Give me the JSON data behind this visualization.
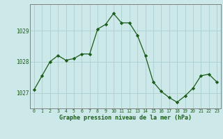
{
  "x": [
    0,
    1,
    2,
    3,
    4,
    5,
    6,
    7,
    8,
    9,
    10,
    11,
    12,
    13,
    14,
    15,
    16,
    17,
    18,
    19,
    20,
    21,
    22,
    23
  ],
  "y": [
    1027.1,
    1027.55,
    1028.0,
    1028.2,
    1028.05,
    1028.1,
    1028.25,
    1028.25,
    1029.05,
    1029.2,
    1029.55,
    1029.25,
    1029.25,
    1028.85,
    1028.2,
    1027.35,
    1027.05,
    1026.85,
    1026.7,
    1026.9,
    1027.15,
    1027.55,
    1027.6,
    1027.35
  ],
  "line_color": "#1a5c1a",
  "marker_color": "#1a5c1a",
  "bg_color": "#cce8e8",
  "grid_color": "#aacece",
  "xlabel": "Graphe pression niveau de la mer (hPa)",
  "xlabel_color": "#1a5c1a",
  "tick_color": "#1a5c1a",
  "ylim": [
    1026.5,
    1029.85
  ],
  "yticks": [
    1027,
    1028,
    1029
  ],
  "xticks": [
    0,
    1,
    2,
    3,
    4,
    5,
    6,
    7,
    8,
    9,
    10,
    11,
    12,
    13,
    14,
    15,
    16,
    17,
    18,
    19,
    20,
    21,
    22,
    23
  ],
  "border_color": "#808080"
}
